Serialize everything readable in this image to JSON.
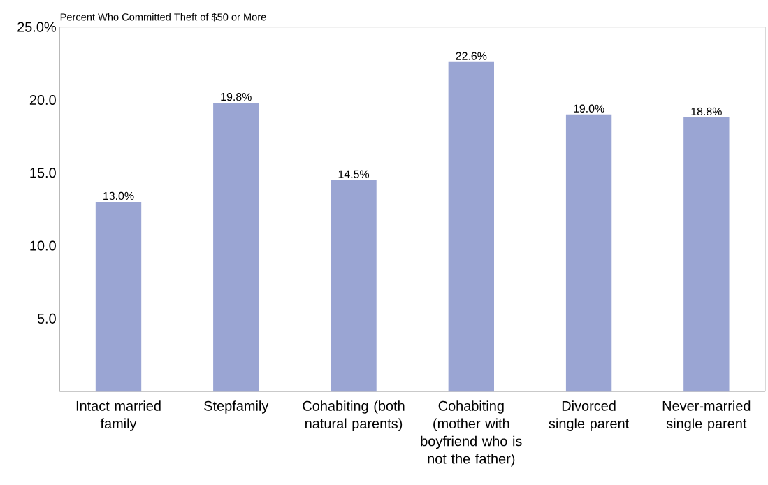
{
  "chart_data": {
    "type": "bar",
    "title": "Percent Who Committed Theft of $50 or More",
    "categories": [
      "Intact married family",
      "Stepfamily",
      "Cohabiting (both natural parents)",
      "Cohabiting (mother with boyfriend who is not the father)",
      "Divorced single parent",
      "Never-married single parent"
    ],
    "values": [
      13.0,
      19.8,
      14.5,
      22.6,
      19.0,
      18.8
    ],
    "value_labels": [
      "13.0%",
      "19.8%",
      "14.5%",
      "22.6%",
      "19.0%",
      "18.8%"
    ],
    "color": "#9aa5d3",
    "ylim": [
      0,
      25
    ],
    "yticks": [
      {
        "value": 5,
        "label": "5.0"
      },
      {
        "value": 10,
        "label": "10.0"
      },
      {
        "value": 15,
        "label": "15.0"
      },
      {
        "value": 20,
        "label": "20.0"
      },
      {
        "value": 25,
        "label": "25.0%"
      }
    ],
    "grid": false
  }
}
